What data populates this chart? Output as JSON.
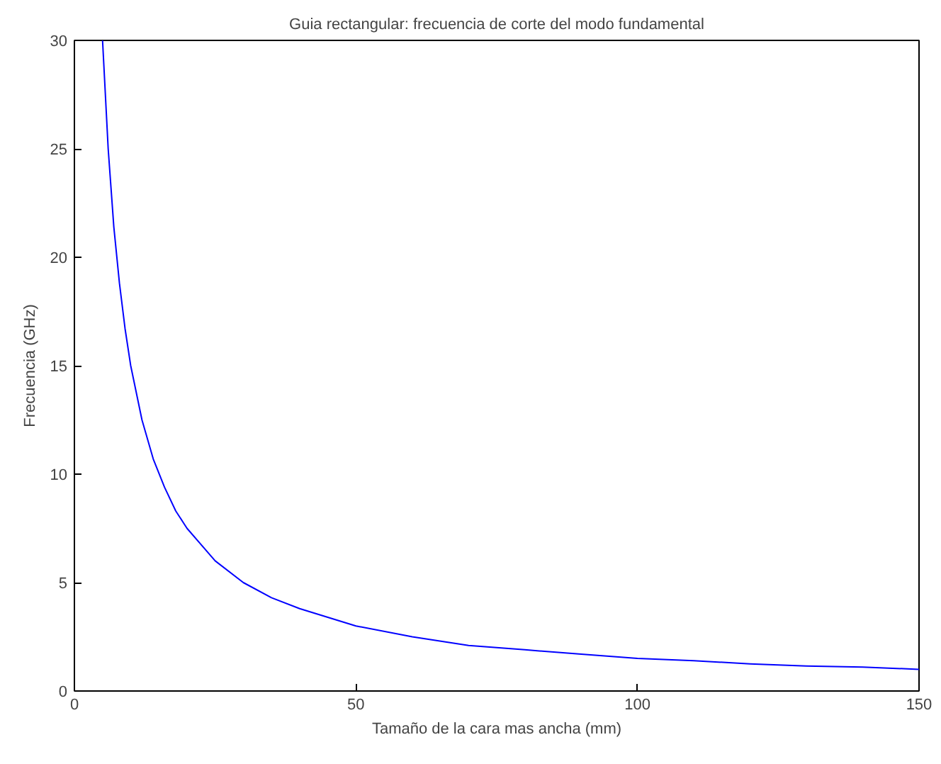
{
  "chart_data": {
    "type": "line",
    "title": "Guia rectangular: frecuencia de corte del modo fundamental",
    "xlabel": "Tamaño de la cara mas ancha (mm)",
    "ylabel": "Frecuencia (GHz)",
    "x": [
      5,
      6,
      7,
      8,
      9,
      10,
      12,
      14,
      16,
      18,
      20,
      25,
      30,
      35,
      40,
      50,
      60,
      70,
      80,
      90,
      100,
      110,
      120,
      130,
      140,
      150
    ],
    "series": [
      {
        "color": "#0000ff",
        "values": [
          30,
          25,
          21.4,
          18.8,
          16.7,
          15,
          12.5,
          10.7,
          9.4,
          8.3,
          7.5,
          6,
          5,
          4.3,
          3.8,
          3,
          2.5,
          2.1,
          1.9,
          1.7,
          1.5,
          1.4,
          1.25,
          1.15,
          1.1,
          1
        ]
      }
    ],
    "xlim": [
      0,
      150
    ],
    "ylim": [
      0,
      30
    ],
    "xticks": [
      0,
      50,
      100,
      150
    ],
    "yticks": [
      0,
      5,
      10,
      15,
      20,
      25,
      30
    ],
    "grid": false,
    "marker": "none",
    "line_style": "solid"
  }
}
